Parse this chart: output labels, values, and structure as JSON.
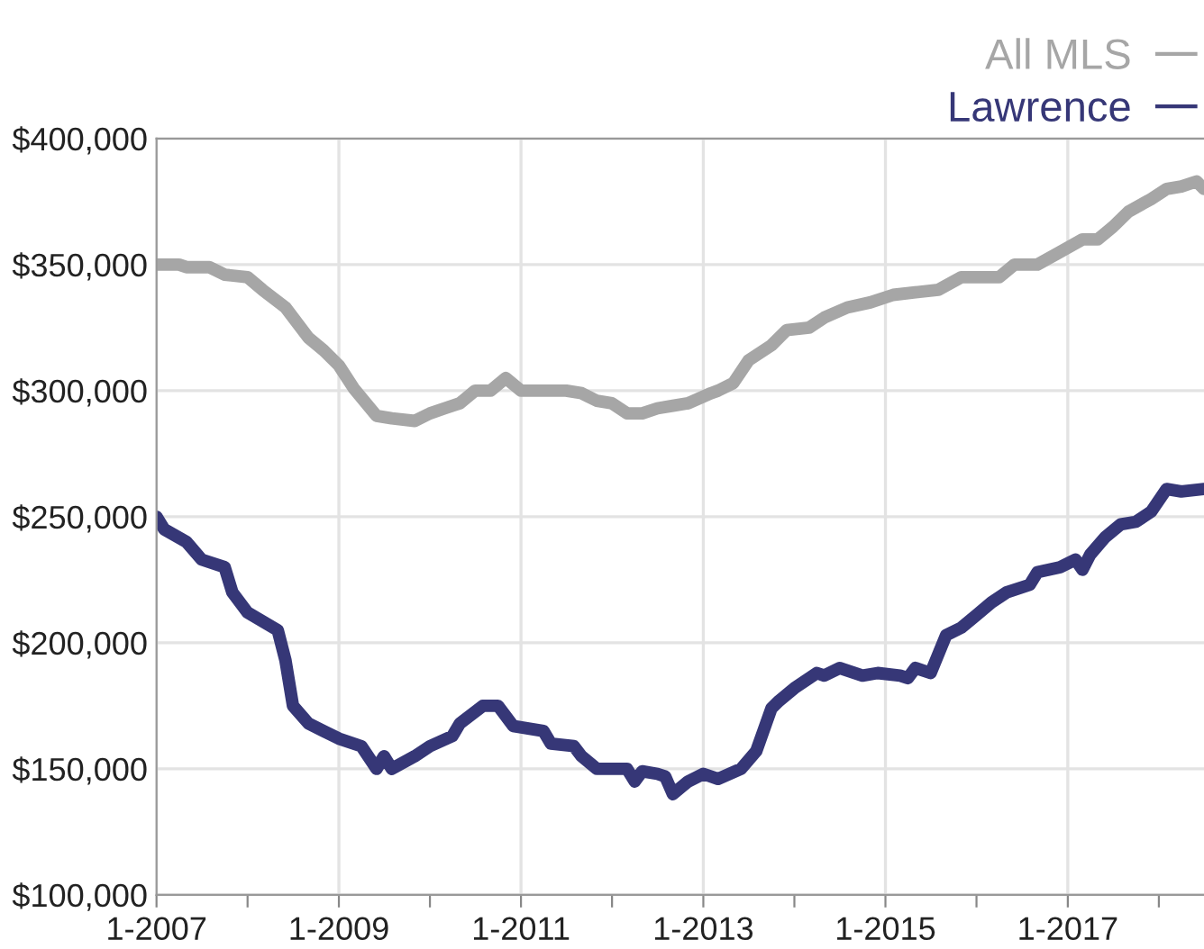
{
  "chart_data": {
    "type": "line",
    "xlim": [
      "2007-01",
      "2018-07"
    ],
    "ylim": [
      100000,
      400000
    ],
    "xticks": [
      {
        "value": "2007-01",
        "label": "1-2007"
      },
      {
        "value": "2008-01",
        "label": null
      },
      {
        "value": "2009-01",
        "label": "1-2009"
      },
      {
        "value": "2010-01",
        "label": null
      },
      {
        "value": "2011-01",
        "label": "1-2011"
      },
      {
        "value": "2012-01",
        "label": null
      },
      {
        "value": "2013-01",
        "label": "1-2013"
      },
      {
        "value": "2014-01",
        "label": null
      },
      {
        "value": "2015-01",
        "label": "1-2015"
      },
      {
        "value": "2016-01",
        "label": null
      },
      {
        "value": "2017-01",
        "label": "1-2017"
      },
      {
        "value": "2018-01",
        "label": null
      }
    ],
    "yticks": [
      {
        "value": 100000,
        "label": "$100,000"
      },
      {
        "value": 150000,
        "label": "$150,000"
      },
      {
        "value": 200000,
        "label": "$200,000"
      },
      {
        "value": 250000,
        "label": "$250,000"
      },
      {
        "value": 300000,
        "label": "$300,000"
      },
      {
        "value": 350000,
        "label": "$350,000"
      },
      {
        "value": 400000,
        "label": "$400,000"
      }
    ],
    "grid": true,
    "legend": "top right",
    "marker": "none",
    "line_style": "solid",
    "series": [
      {
        "name": "All MLS",
        "color": "#a6a6a6",
        "x": [
          "2007-01",
          "2007-04",
          "2007-05",
          "2007-08",
          "2007-10",
          "2008-01",
          "2008-03",
          "2008-06",
          "2008-09",
          "2008-11",
          "2009-01",
          "2009-03",
          "2009-06",
          "2009-08",
          "2009-11",
          "2010-01",
          "2010-03",
          "2010-05",
          "2010-07",
          "2010-09",
          "2010-11",
          "2011-01",
          "2011-07",
          "2011-09",
          "2011-11",
          "2012-01",
          "2012-03",
          "2012-05",
          "2012-07",
          "2012-09",
          "2012-11",
          "2013-02",
          "2013-03",
          "2013-05",
          "2013-07",
          "2013-10",
          "2013-12",
          "2014-03",
          "2014-05",
          "2014-08",
          "2014-11",
          "2015-02",
          "2015-05",
          "2015-08",
          "2015-11",
          "2016-04",
          "2016-06",
          "2016-09",
          "2016-12",
          "2017-03",
          "2017-05",
          "2017-07",
          "2017-09",
          "2017-12",
          "2018-02",
          "2018-04",
          "2018-06",
          "2018-07"
        ],
        "values": [
          350000,
          350000,
          349000,
          349000,
          346000,
          345000,
          340000,
          333000,
          321000,
          316000,
          310000,
          301000,
          290000,
          289000,
          288000,
          291000,
          293000,
          295000,
          300000,
          300000,
          305000,
          300000,
          300000,
          299000,
          296000,
          295000,
          291000,
          291000,
          293000,
          294000,
          295000,
          299000,
          300000,
          303000,
          312000,
          318000,
          324000,
          325000,
          329000,
          333000,
          335000,
          338000,
          339000,
          340000,
          345000,
          345000,
          350000,
          350000,
          355000,
          360000,
          360000,
          365000,
          371000,
          376000,
          380000,
          381000,
          383000,
          380000
        ]
      },
      {
        "name": "Lawrence",
        "color": "#363777",
        "x": [
          "2007-01",
          "2007-02",
          "2007-05",
          "2007-07",
          "2007-10",
          "2007-11",
          "2008-01",
          "2008-05",
          "2008-06",
          "2008-07",
          "2008-09",
          "2008-11",
          "2009-01",
          "2009-04",
          "2009-06",
          "2009-07",
          "2009-08",
          "2009-11",
          "2010-01",
          "2010-04",
          "2010-05",
          "2010-08",
          "2010-10",
          "2010-12",
          "2011-04",
          "2011-05",
          "2011-08",
          "2011-09",
          "2011-11",
          "2012-03",
          "2012-04",
          "2012-05",
          "2012-07",
          "2012-08",
          "2012-09",
          "2012-11",
          "2013-01",
          "2013-03",
          "2013-06",
          "2013-08",
          "2013-10",
          "2013-11",
          "2014-01",
          "2014-04",
          "2014-05",
          "2014-07",
          "2014-10",
          "2014-12",
          "2015-03",
          "2015-04",
          "2015-05",
          "2015-07",
          "2015-09",
          "2015-11",
          "2016-01",
          "2016-03",
          "2016-05",
          "2016-08",
          "2016-09",
          "2016-12",
          "2017-02",
          "2017-03",
          "2017-04",
          "2017-06",
          "2017-08",
          "2017-10",
          "2017-12",
          "2018-02",
          "2018-04",
          "2018-07"
        ],
        "values": [
          250000,
          245000,
          240000,
          233000,
          230000,
          220000,
          212000,
          205000,
          193000,
          175000,
          168000,
          165000,
          162000,
          159000,
          150000,
          155000,
          150000,
          155000,
          159000,
          163000,
          168000,
          175000,
          175000,
          167000,
          165000,
          160000,
          159000,
          155000,
          150000,
          150000,
          145000,
          149000,
          148000,
          147000,
          140000,
          145000,
          148000,
          146000,
          150000,
          157000,
          174000,
          177000,
          182000,
          188000,
          187000,
          190000,
          187000,
          188000,
          187000,
          186000,
          190000,
          188000,
          203000,
          206000,
          211000,
          216000,
          220000,
          223000,
          228000,
          230000,
          233000,
          229000,
          235000,
          242000,
          247000,
          248000,
          252000,
          261000,
          260000,
          261000
        ]
      }
    ]
  }
}
